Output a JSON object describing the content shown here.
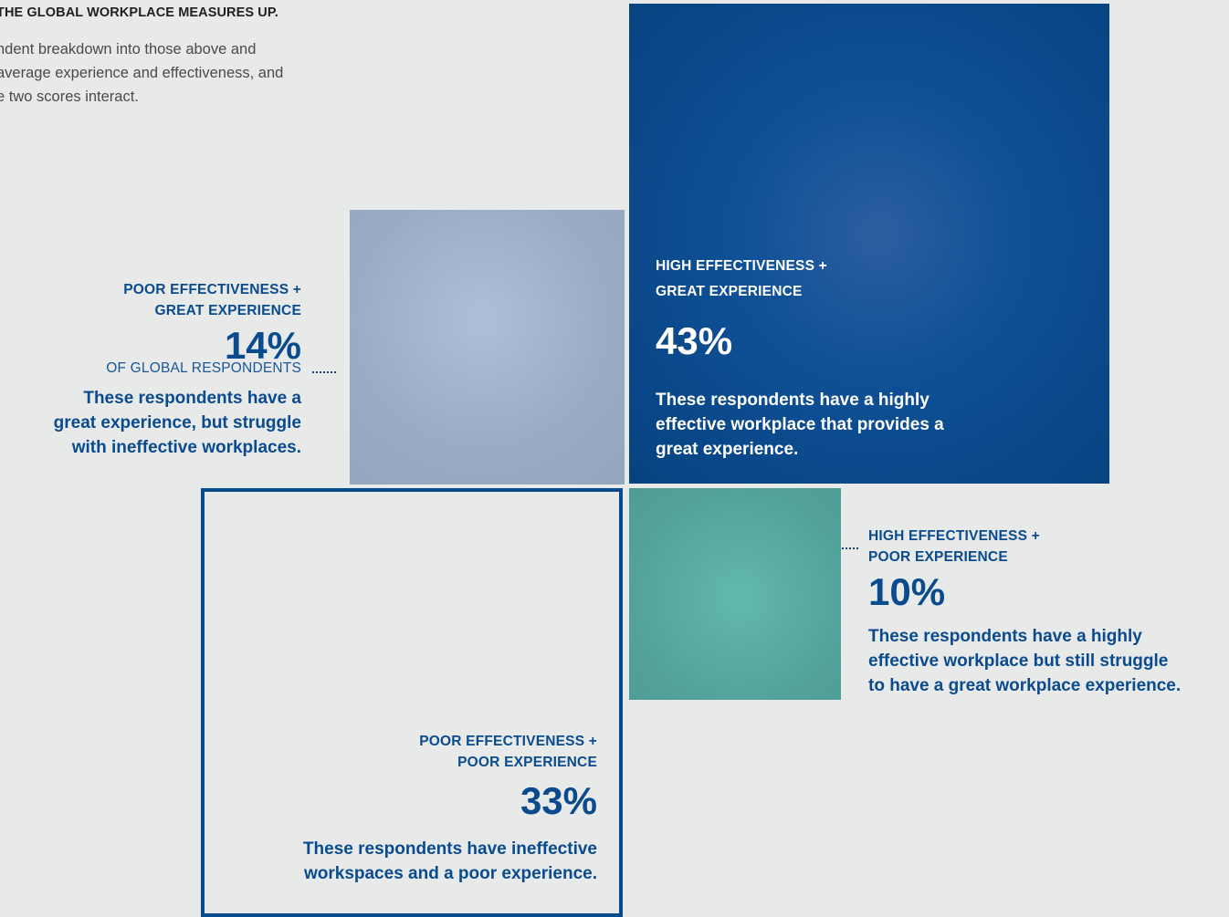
{
  "intro": {
    "heading": "THE GLOBAL WORKPLACE MEASURES UP.",
    "text": "ndent breakdown into those above and\naverage experience and effectiveness, and\ne two scores interact."
  },
  "colors": {
    "background": "#e8e9e9",
    "text_blue": "#0a4b8e",
    "high_great": "#0a4b8e",
    "poor_great": "#9aabc4",
    "high_poor": "#52a29b",
    "poor_poor_border": "#0a4b8e"
  },
  "chart_data": {
    "type": "treemap",
    "title": "",
    "subtitle": "",
    "segments": [
      {
        "key": "high_great",
        "label_line1": "HIGH EFFECTIVENESS +",
        "label_line2": "GREAT EXPERIENCE",
        "value": 43,
        "value_text": "43%",
        "subtext": "",
        "description_lines": [
          "These respondents have a highly",
          "effective workplace that provides a",
          "great experience."
        ]
      },
      {
        "key": "poor_great",
        "label_line1": "POOR EFFECTIVENESS +",
        "label_line2": "GREAT EXPERIENCE",
        "value": 14,
        "value_text": "14%",
        "subtext": "OF GLOBAL RESPONDENTS",
        "description_lines": [
          "These respondents have a",
          "great experience, but struggle",
          "with ineffective workplaces."
        ]
      },
      {
        "key": "high_poor",
        "label_line1": "HIGH EFFECTIVENESS +",
        "label_line2": "POOR EXPERIENCE",
        "value": 10,
        "value_text": "10%",
        "subtext": "",
        "description_lines": [
          "These respondents have a highly",
          "effective workplace but still struggle",
          "to have a great workplace experience."
        ]
      },
      {
        "key": "poor_poor",
        "label_line1": "POOR EFFECTIVENESS +",
        "label_line2": "POOR EXPERIENCE",
        "value": 33,
        "value_text": "33%",
        "subtext": "",
        "description_lines": [
          "These respondents have ineffective",
          "workspaces and a poor experience."
        ]
      }
    ]
  }
}
